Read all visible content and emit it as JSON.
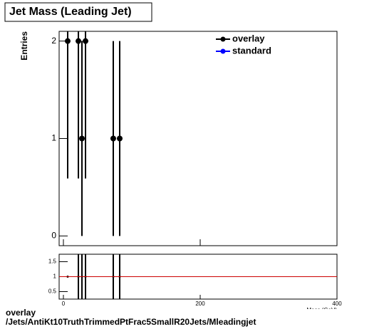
{
  "title": "Jet Mass (Leading Jet)",
  "footer": [
    "overlay",
    "/Jets/AntiKt10TruthTrimmedPtFrac5SmallR20Jets/Mleadingjet"
  ],
  "chart_data": [
    {
      "type": "scatter",
      "ylabel": "Entries",
      "xlim": [
        -6.25,
        400
      ],
      "xticks": [
        0,
        200,
        400
      ],
      "ylim": [
        -0.1,
        2.1
      ],
      "yticks": [
        0,
        1,
        2
      ],
      "legend": "top-right",
      "series": [
        {
          "name": "overlay",
          "color": "#000000",
          "x": [
            6.25,
            21.9,
            27.1,
            32.3,
            72.9,
            82.3
          ],
          "values": [
            2,
            2,
            1,
            2,
            1,
            1
          ],
          "errors": [
            1.41,
            1.41,
            1,
            1.41,
            1,
            1
          ]
        },
        {
          "name": "standard",
          "color": "#0000ff",
          "x": [],
          "values": [],
          "errors": []
        }
      ]
    },
    {
      "type": "ratio",
      "xlabel": "Mass (GeV)",
      "xlim": [
        -6.25,
        400
      ],
      "xticks": [
        0,
        200,
        400
      ],
      "ylim": [
        0.25,
        1.75
      ],
      "yticks": [
        0.5,
        1,
        1.5
      ],
      "reference": 1,
      "reference_color": "#cc0000",
      "series": [
        {
          "color": "#000000",
          "x": [
            6.25,
            21.9,
            27.1,
            32.3,
            72.9,
            82.3
          ],
          "values": [
            1,
            1,
            1,
            1,
            1,
            1
          ],
          "errors": [
            0,
            2,
            2,
            2,
            2,
            2
          ]
        }
      ]
    }
  ]
}
